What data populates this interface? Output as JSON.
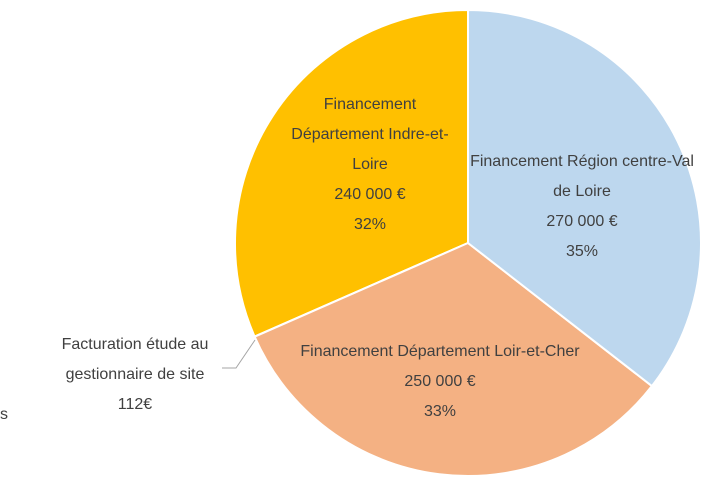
{
  "chart_data": {
    "type": "pie",
    "categories": [
      "Financement Région centre-Val de Loire",
      "Financement Département Loir-et-Cher",
      "Facturation étude au gestionnaire de site",
      "Financement Département Indre-et-Loire"
    ],
    "values": [
      270000,
      250000,
      112,
      240000
    ],
    "value_labels": [
      "270 000 €",
      "250 000 €",
      "112€",
      "240 000 €"
    ],
    "percent_labels": [
      "35%",
      "33%",
      null,
      "32%"
    ],
    "colors": [
      "#bdd7ee",
      "#f4b183",
      "#a5a5a5",
      "#ffc000"
    ],
    "annotation": "s"
  }
}
